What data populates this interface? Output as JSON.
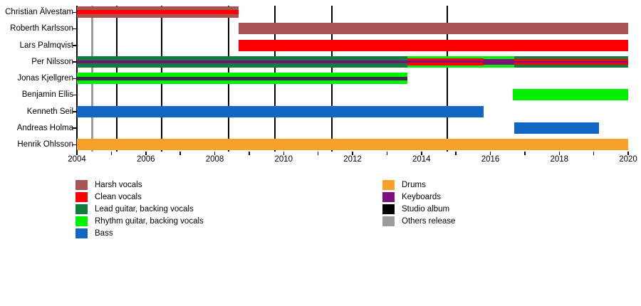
{
  "chart_data": {
    "type": "timeline",
    "description": "Band members timeline (gantt-style) with role colors and release markers",
    "x_axis": {
      "min": 2004,
      "max": 2020,
      "labeled_ticks": [
        "2004",
        "2006",
        "2008",
        "2010",
        "2012",
        "2014",
        "2016",
        "2018",
        "2020"
      ],
      "labeled_tick_years": [
        2004,
        2006,
        2008,
        2010,
        2012,
        2014,
        2016,
        2018,
        2020
      ],
      "minor_tick_every_years": 1
    },
    "palette": {
      "harsh_vocals": "#A85454",
      "clean_vocals": "#FB0000",
      "lead_guitar": "#107C3E",
      "rhythm_guitar": "#00F000",
      "bass": "#1366C4",
      "drums": "#F9A12B",
      "keyboards": "#7E107E",
      "keyboards_dark": "#3E2A4E",
      "studio_album": "#000000",
      "others_release": "#9C9C9C"
    },
    "members": [
      {
        "name": "Christian Älvestam",
        "segments": [
          {
            "from": 2004.0,
            "to": 2008.7,
            "stripes": [
              {
                "role": "harsh_vocals",
                "w": 5
              },
              {
                "role": "clean_vocals",
                "w": 6
              },
              {
                "role": "harsh_vocals",
                "w": 5
              }
            ]
          }
        ]
      },
      {
        "name": "Roberth Karlsson",
        "segments": [
          {
            "from": 2008.7,
            "to": 2020.0,
            "stripes": [
              {
                "role": "harsh_vocals",
                "w": 1
              }
            ]
          }
        ]
      },
      {
        "name": "Lars Palmqvist",
        "segments": [
          {
            "from": 2008.7,
            "to": 2020.0,
            "stripes": [
              {
                "role": "clean_vocals",
                "w": 1
              }
            ]
          }
        ]
      },
      {
        "name": "Per Nilsson",
        "segments": [
          {
            "from": 2004.0,
            "to": 2013.6,
            "stripes": [
              {
                "role": "lead_guitar",
                "w": 6
              },
              {
                "role": "keyboards",
                "w": 4
              },
              {
                "role": "lead_guitar",
                "w": 6
              }
            ]
          },
          {
            "from": 2013.6,
            "to": 2015.8,
            "stripes": [
              {
                "role": "rhythm_guitar",
                "w": 3
              },
              {
                "role": "clean_vocals",
                "w": 3.5
              },
              {
                "role": "keyboards",
                "w": 3
              },
              {
                "role": "clean_vocals",
                "w": 3.5
              },
              {
                "role": "rhythm_guitar",
                "w": 3
              }
            ]
          },
          {
            "from": 2015.8,
            "to": 2016.7,
            "stripes": [
              {
                "role": "rhythm_guitar",
                "w": 4
              },
              {
                "role": "keyboards",
                "w": 8
              },
              {
                "role": "rhythm_guitar",
                "w": 4
              }
            ]
          },
          {
            "from": 2016.7,
            "to": 2020.0,
            "stripes": [
              {
                "role": "lead_guitar",
                "w": 4.5
              },
              {
                "role": "clean_vocals",
                "w": 3
              },
              {
                "role": "keyboards",
                "w": 2.8
              },
              {
                "role": "clean_vocals",
                "w": 3
              },
              {
                "role": "lead_guitar",
                "w": 4.5
              }
            ]
          }
        ]
      },
      {
        "name": "Jonas Kjellgren",
        "segments": [
          {
            "from": 2004.0,
            "to": 2013.6,
            "stripes": [
              {
                "role": "rhythm_guitar",
                "w": 5.5
              },
              {
                "role": "keyboards_dark",
                "w": 5
              },
              {
                "role": "rhythm_guitar",
                "w": 5.5
              }
            ]
          }
        ]
      },
      {
        "name": "Benjamin Ellis",
        "segments": [
          {
            "from": 2016.65,
            "to": 2020.0,
            "stripes": [
              {
                "role": "rhythm_guitar",
                "w": 1
              }
            ]
          }
        ]
      },
      {
        "name": "Kenneth Seil",
        "segments": [
          {
            "from": 2004.0,
            "to": 2015.8,
            "stripes": [
              {
                "role": "bass",
                "w": 1
              }
            ]
          }
        ]
      },
      {
        "name": "Andreas Holma",
        "segments": [
          {
            "from": 2016.7,
            "to": 2019.15,
            "stripes": [
              {
                "role": "bass",
                "w": 1
              }
            ]
          }
        ]
      },
      {
        "name": "Henrik Ohlsson",
        "segments": [
          {
            "from": 2004.0,
            "to": 2020.0,
            "stripes": [
              {
                "role": "drums",
                "w": 1
              }
            ]
          }
        ]
      }
    ],
    "events": [
      {
        "year": 2004.45,
        "type": "others_release"
      },
      {
        "year": 2005.15,
        "type": "studio_album"
      },
      {
        "year": 2006.45,
        "type": "studio_album"
      },
      {
        "year": 2008.4,
        "type": "studio_album"
      },
      {
        "year": 2009.75,
        "type": "studio_album"
      },
      {
        "year": 2011.4,
        "type": "studio_album"
      },
      {
        "year": 2014.75,
        "type": "studio_album"
      }
    ],
    "legend": {
      "left_column": [
        {
          "label": "Harsh vocals",
          "role": "harsh_vocals"
        },
        {
          "label": "Clean vocals",
          "role": "clean_vocals"
        },
        {
          "label": "Lead guitar, backing vocals",
          "role": "lead_guitar"
        },
        {
          "label": "Rhythm guitar, backing vocals",
          "role": "rhythm_guitar"
        },
        {
          "label": "Bass",
          "role": "bass"
        }
      ],
      "right_column": [
        {
          "label": "Drums",
          "role": "drums"
        },
        {
          "label": "Keyboards",
          "role": "keyboards"
        },
        {
          "label": "Studio album",
          "role": "studio_album"
        },
        {
          "label": "Others release",
          "role": "others_release"
        }
      ]
    }
  }
}
